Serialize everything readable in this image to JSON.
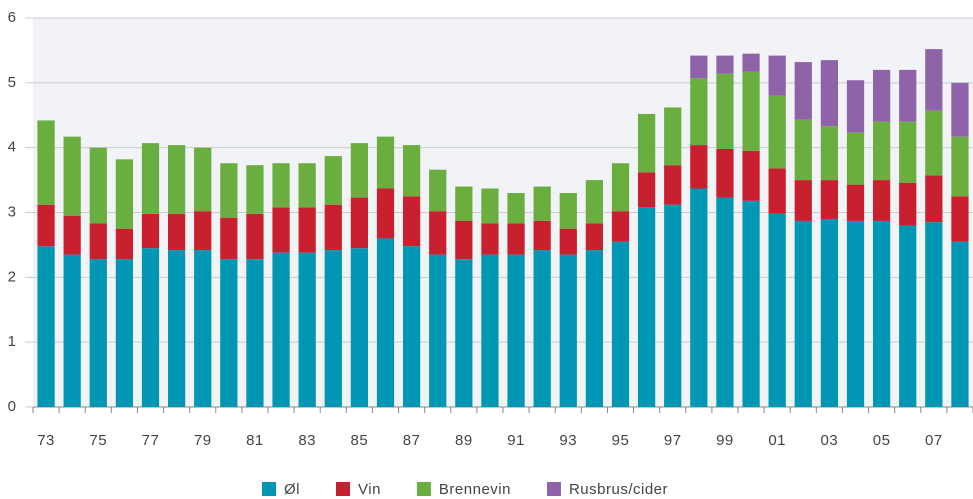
{
  "chart_data": {
    "type": "stacked_bar",
    "categories": [
      "73",
      null,
      "75",
      null,
      "77",
      null,
      "79",
      null,
      "81",
      null,
      "83",
      null,
      "85",
      null,
      "87",
      null,
      "89",
      null,
      "91",
      null,
      "93",
      null,
      "95",
      null,
      "97",
      null,
      "99",
      null,
      "01",
      null,
      "03",
      null,
      "05",
      null,
      "07",
      null
    ],
    "series": [
      {
        "name": "Øl",
        "color": "#0096b4",
        "values": [
          2.48,
          2.35,
          2.28,
          2.28,
          2.45,
          2.42,
          2.42,
          2.28,
          2.28,
          2.38,
          2.38,
          2.42,
          2.45,
          2.6,
          2.48,
          2.35,
          2.28,
          2.35,
          2.35,
          2.42,
          2.35,
          2.42,
          2.55,
          3.08,
          3.12,
          3.37,
          3.23,
          3.18,
          2.98,
          2.87,
          2.9,
          2.87,
          2.87,
          2.8,
          2.85,
          2.55
        ]
      },
      {
        "name": "Vin",
        "color": "#c8202e",
        "values": [
          0.64,
          0.6,
          0.55,
          0.47,
          0.53,
          0.56,
          0.6,
          0.64,
          0.7,
          0.7,
          0.7,
          0.7,
          0.78,
          0.77,
          0.77,
          0.67,
          0.59,
          0.48,
          0.48,
          0.45,
          0.4,
          0.41,
          0.47,
          0.54,
          0.61,
          0.67,
          0.75,
          0.77,
          0.7,
          0.63,
          0.6,
          0.56,
          0.63,
          0.66,
          0.72,
          0.7
        ]
      },
      {
        "name": "Brennevin",
        "color": "#6aae3f",
        "values": [
          1.3,
          1.22,
          1.17,
          1.07,
          1.09,
          1.06,
          0.98,
          0.84,
          0.75,
          0.68,
          0.68,
          0.75,
          0.84,
          0.8,
          0.79,
          0.64,
          0.53,
          0.54,
          0.47,
          0.53,
          0.55,
          0.67,
          0.74,
          0.9,
          0.89,
          1.03,
          1.16,
          1.22,
          1.12,
          0.93,
          0.83,
          0.8,
          0.9,
          0.94,
          1.0,
          0.92
        ]
      },
      {
        "name": "Rusbrus/cider",
        "color": "#8e63a8",
        "values": [
          0,
          0,
          0,
          0,
          0,
          0,
          0,
          0,
          0,
          0,
          0,
          0,
          0,
          0,
          0,
          0,
          0,
          0,
          0,
          0,
          0,
          0,
          0,
          0,
          0,
          0.35,
          0.28,
          0.28,
          0.62,
          0.89,
          1.02,
          0.81,
          0.8,
          0.8,
          0.95,
          0.83
        ]
      }
    ],
    "ylim": [
      0,
      6
    ],
    "yticks": [
      0,
      1,
      2,
      3,
      4,
      5,
      6
    ],
    "grid": true,
    "legend": "bottom"
  }
}
